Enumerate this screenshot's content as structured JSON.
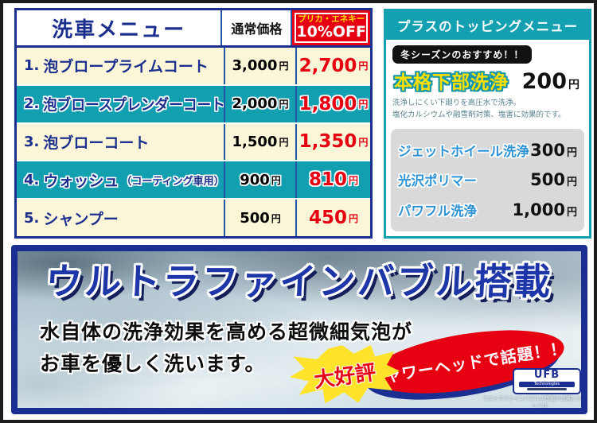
{
  "wash_menu": {
    "title": "洗車メニュー",
    "col_normal": "通常価格",
    "discount_badge": {
      "line1": "プリカ・エネキー",
      "line2": "10%OFF"
    },
    "yen": "円",
    "rows": [
      {
        "num": "1.",
        "name": "泡ブロープライムコート",
        "note": "",
        "normal": "3,000",
        "discount": "2,700"
      },
      {
        "num": "2.",
        "name": "泡ブロースプレンダーコート",
        "note": "",
        "normal": "2,000",
        "discount": "1,800"
      },
      {
        "num": "3.",
        "name": "泡ブローコート",
        "note": "",
        "normal": "1,500",
        "discount": "1,350"
      },
      {
        "num": "4.",
        "name": "ウォッシュ",
        "note": "（コーティング車用）",
        "normal": "900",
        "discount": "810"
      },
      {
        "num": "5.",
        "name": "シャンプー",
        "note": "",
        "normal": "500",
        "discount": "450"
      }
    ]
  },
  "topping_menu": {
    "title": "プラスのトッピングメニュー",
    "recommend_badge": "冬シーズンのおすすめ！！",
    "featured": {
      "name": "本格下部洗浄",
      "price": "200",
      "desc_line1": "洗浄しにくい下廻りを高圧水で洗浄。",
      "desc_line2": "塩化カルシウムや融雪剤対策、塩害に効果的です。"
    },
    "items": [
      {
        "name": "ジェットホイール洗浄",
        "price": "300"
      },
      {
        "name": "光沢ポリマー",
        "price": "500"
      },
      {
        "name": "パワフル洗浄",
        "price": "1,000"
      }
    ]
  },
  "banner": {
    "title": "ウルトラファインバブル搭載",
    "line1": "水自体の洗浄効果を高める超微細気泡が",
    "line2": "お車を優しく洗います。",
    "burst": "大好評",
    "ellipse": "シャワーヘッドで話題！！",
    "logo_main": "UFB",
    "logo_sub": "Technologies",
    "fine_print1": "ウルトラファインバブルの性能や効果について詳しくは",
    "fine_print2": "株式会社シバタのHPをご確認ください。"
  },
  "colors": {
    "navy": "#1b2f8e",
    "teal": "#12a0b1",
    "red": "#e60012",
    "yellow": "#ffe100",
    "cream": "#fbf6d8",
    "gray_block": "#d9d9d9",
    "item_blue": "#2e93d5"
  }
}
